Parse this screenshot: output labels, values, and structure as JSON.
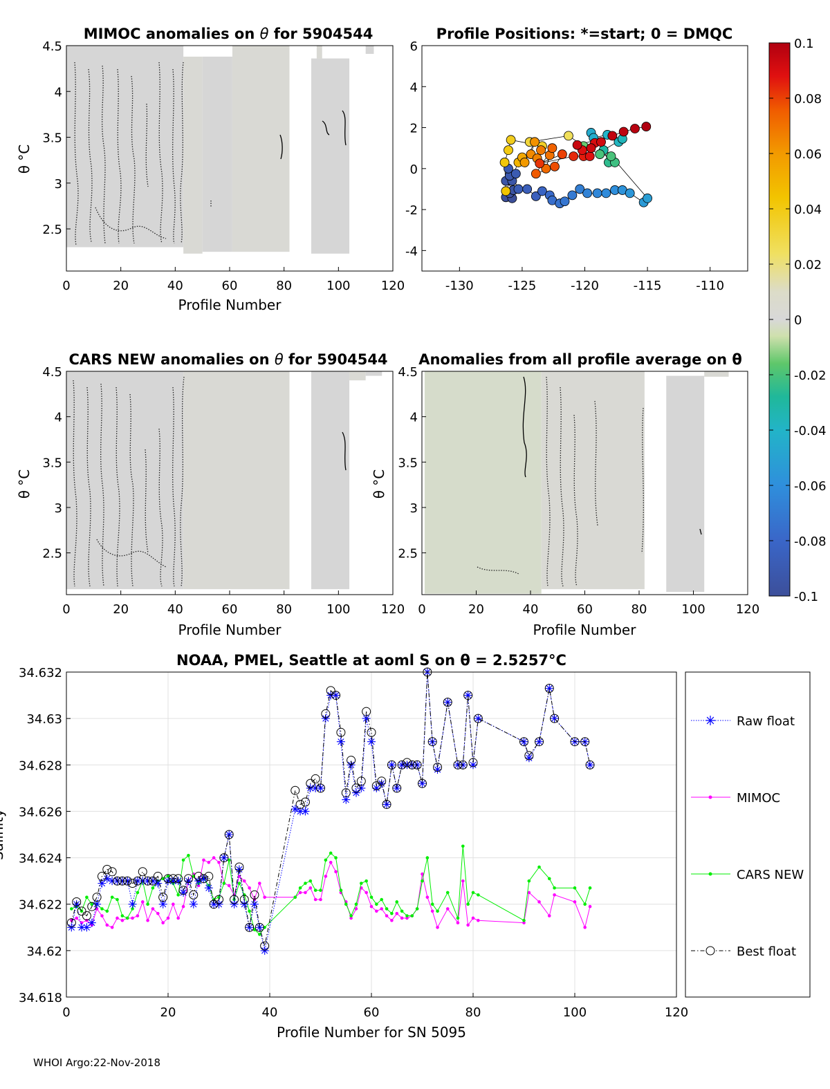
{
  "footer": "WHOI Argo:22-Nov-2018",
  "colorbar": {
    "ticks": [
      "0.1",
      "0.08",
      "0.06",
      "0.04",
      "0.02",
      "0",
      "-0.02",
      "-0.04",
      "-0.06",
      "-0.08",
      "-0.1"
    ],
    "range": [
      -0.1,
      0.1
    ]
  },
  "chart_data": [
    {
      "id": "mimoc",
      "type": "heatmap",
      "title_prefix": "MIMOC anomalies on ",
      "title_suffix": "  for 5904544",
      "xlabel": "Profile Number",
      "ylabel": "θ °C",
      "xlim": [
        0,
        120
      ],
      "ylim": [
        2.04,
        4.5
      ],
      "xticks": [
        "0",
        "20",
        "40",
        "60",
        "80",
        "100",
        "120"
      ],
      "yticks": [
        "2.5",
        "3",
        "3.5",
        "4",
        "4.5"
      ],
      "blocks": [
        [
          0,
          43,
          2.3,
          4.5
        ],
        [
          43,
          50,
          2.23,
          4.38
        ],
        [
          50,
          61,
          2.25,
          4.38
        ],
        [
          61,
          82,
          2.25,
          4.5
        ],
        [
          90,
          104,
          2.23,
          4.36
        ],
        [
          92,
          94,
          4.36,
          4.5
        ],
        [
          110,
          113,
          4.41,
          4.5
        ]
      ]
    },
    {
      "id": "positions",
      "type": "scatter",
      "title": "Profile Positions: *=start; 0 = DMQC",
      "xlim": [
        -133,
        -107
      ],
      "ylim": [
        -5,
        6
      ],
      "xticks": [
        "-130",
        "-125",
        "-120",
        "-115",
        "-110"
      ],
      "yticks": [
        "-4",
        "-2",
        "0",
        "2",
        "4",
        "6"
      ],
      "points": [
        [
          -126.3,
          -1.4,
          -0.1
        ],
        [
          -125.8,
          -1.45,
          -0.1
        ],
        [
          -126.0,
          -1.2,
          -0.098
        ],
        [
          -125.7,
          -1.05,
          -0.096
        ],
        [
          -126.3,
          -0.6,
          -0.095
        ],
        [
          -125.8,
          -0.6,
          -0.094
        ],
        [
          -126.0,
          -0.35,
          -0.092
        ],
        [
          -125.5,
          -0.25,
          -0.09
        ],
        [
          -126.1,
          0.0,
          -0.09
        ],
        [
          -125.3,
          -1.0,
          -0.088
        ],
        [
          -124.6,
          -1.0,
          -0.086
        ],
        [
          -123.9,
          -1.35,
          -0.085
        ],
        [
          -123.4,
          -1.1,
          -0.082
        ],
        [
          -122.8,
          -1.3,
          -0.078
        ],
        [
          -122.6,
          -1.55,
          -0.076
        ],
        [
          -122.0,
          -1.7,
          -0.074
        ],
        [
          -121.6,
          -1.6,
          -0.072
        ],
        [
          -121.0,
          -1.3,
          -0.07
        ],
        [
          -120.4,
          -1.0,
          -0.068
        ],
        [
          -119.8,
          -1.2,
          -0.066
        ],
        [
          -119.0,
          -1.2,
          -0.064
        ],
        [
          -118.3,
          -1.2,
          -0.062
        ],
        [
          -117.6,
          -1.05,
          -0.06
        ],
        [
          -117.0,
          -1.05,
          -0.058
        ],
        [
          -116.4,
          -1.2,
          -0.056
        ],
        [
          -115.3,
          -1.65,
          -0.054
        ],
        [
          -115.0,
          -1.45,
          -0.052
        ],
        [
          -119.5,
          1.75,
          -0.045
        ],
        [
          -119.3,
          1.5,
          -0.044
        ],
        [
          -118.2,
          1.65,
          -0.04
        ],
        [
          -117.3,
          1.3,
          -0.038
        ],
        [
          -117.0,
          1.45,
          -0.036
        ],
        [
          -118.5,
          0.9,
          -0.03
        ],
        [
          -118.1,
          0.3,
          -0.025
        ],
        [
          -117.6,
          0.3,
          -0.022
        ],
        [
          -117.9,
          0.6,
          -0.02
        ],
        [
          -118.8,
          0.7,
          -0.02
        ],
        [
          -120.1,
          1.1,
          -0.015
        ],
        [
          -121.3,
          1.6,
          0.025
        ],
        [
          -124.4,
          1.3,
          0.032
        ],
        [
          -123.4,
          1.1,
          0.036
        ],
        [
          -125.9,
          1.4,
          0.038
        ],
        [
          -126.1,
          0.9,
          0.04
        ],
        [
          -126.4,
          0.3,
          0.042
        ],
        [
          -126.3,
          -1.1,
          0.044
        ],
        [
          -125.3,
          0.3,
          0.05
        ],
        [
          -125.0,
          0.55,
          0.055
        ],
        [
          -124.8,
          0.3,
          0.06
        ],
        [
          -124.0,
          1.3,
          0.062
        ],
        [
          -124.3,
          0.7,
          0.064
        ],
        [
          -123.8,
          0.5,
          0.066
        ],
        [
          -123.5,
          0.9,
          0.068
        ],
        [
          -122.8,
          0.65,
          0.07
        ],
        [
          -123.1,
          0.0,
          0.072
        ],
        [
          -122.6,
          1.0,
          0.074
        ],
        [
          -123.9,
          -0.25,
          0.076
        ],
        [
          -122.4,
          0.1,
          0.078
        ],
        [
          -121.8,
          0.7,
          0.08
        ],
        [
          -123.6,
          0.25,
          0.082
        ],
        [
          -120.9,
          0.6,
          0.084
        ],
        [
          -120.1,
          0.6,
          0.086
        ],
        [
          -119.6,
          0.6,
          0.088
        ],
        [
          -120.2,
          0.9,
          0.089
        ],
        [
          -119.2,
          1.25,
          0.09
        ],
        [
          -118.7,
          1.3,
          0.092
        ],
        [
          -119.5,
          1.0,
          0.093
        ],
        [
          -120.6,
          1.15,
          0.094
        ],
        [
          -117.8,
          1.6,
          0.096
        ],
        [
          -116.9,
          1.8,
          0.097
        ],
        [
          -116.0,
          1.95,
          0.098
        ],
        [
          -115.1,
          2.05,
          0.1
        ]
      ]
    },
    {
      "id": "cars",
      "type": "heatmap",
      "title_prefix": "CARS NEW anomalies on ",
      "title_suffix": " for 5904544",
      "xlabel": "Profile Number",
      "ylabel": "θ °C",
      "xlim": [
        0,
        120
      ],
      "ylim": [
        2.04,
        4.5
      ],
      "xticks": [
        "0",
        "20",
        "40",
        "60",
        "80",
        "100",
        "120"
      ],
      "yticks": [
        "2.5",
        "3",
        "3.5",
        "4",
        "4.5"
      ],
      "blocks": [
        [
          0,
          43,
          2.1,
          4.5
        ],
        [
          43,
          82,
          2.1,
          4.5
        ],
        [
          90,
          104,
          2.1,
          4.5
        ],
        [
          104,
          110,
          4.4,
          4.5
        ],
        [
          110,
          116,
          4.45,
          4.5
        ]
      ]
    },
    {
      "id": "average",
      "type": "heatmap",
      "title": "Anomalies from all profile average on θ",
      "xlabel": "Profile Number",
      "ylabel": "θ °C",
      "xlim": [
        0,
        120
      ],
      "ylim": [
        2.04,
        4.5
      ],
      "xticks": [
        "0",
        "20",
        "40",
        "60",
        "80",
        "100",
        "120"
      ],
      "yticks": [
        "2.5",
        "3",
        "3.5",
        "4",
        "4.5"
      ],
      "blocks": [
        [
          1,
          44,
          2.05,
          4.5
        ],
        [
          44,
          82,
          2.1,
          4.5
        ],
        [
          90,
          104,
          2.07,
          4.45
        ],
        [
          104,
          113,
          4.44,
          4.5
        ]
      ]
    },
    {
      "id": "salinity",
      "type": "line",
      "title": "NOAA, PMEL, Seattle at aoml S on θ = 2.5257°C",
      "xlabel": "Profile Number for SN 5095",
      "ylabel": "Salinity",
      "xlim": [
        0,
        120
      ],
      "ylim": [
        34.618,
        34.632
      ],
      "xticks": [
        "0",
        "20",
        "40",
        "60",
        "80",
        "100",
        "120"
      ],
      "yticks": [
        "34.632",
        "34.63",
        "34.628",
        "34.626",
        "34.624",
        "34.622",
        "34.62",
        "34.618"
      ],
      "x": [
        1,
        2,
        3,
        4,
        5,
        6,
        7,
        8,
        9,
        10,
        11,
        12,
        13,
        14,
        15,
        16,
        17,
        18,
        19,
        20,
        21,
        22,
        23,
        24,
        25,
        26,
        27,
        28,
        29,
        30,
        31,
        32,
        33,
        34,
        35,
        36,
        37,
        38,
        39,
        45,
        46,
        47,
        48,
        49,
        50,
        51,
        52,
        53,
        54,
        55,
        56,
        57,
        58,
        59,
        60,
        61,
        62,
        63,
        64,
        65,
        66,
        67,
        68,
        69,
        70,
        71,
        72,
        73,
        75,
        77,
        78,
        79,
        80,
        81,
        90,
        91,
        93,
        95,
        96,
        100,
        102,
        103
      ],
      "series": [
        {
          "name": "Raw float",
          "color": "#0000ff",
          "values": [
            34.621,
            34.622,
            34.621,
            34.621,
            34.6212,
            34.622,
            34.6229,
            34.6231,
            34.623,
            34.623,
            34.623,
            34.623,
            34.622,
            34.623,
            34.623,
            34.623,
            34.623,
            34.6229,
            34.622,
            34.623,
            34.623,
            34.623,
            34.6225,
            34.623,
            34.622,
            34.623,
            34.6231,
            34.6227,
            34.622,
            34.622,
            34.624,
            34.625,
            34.622,
            34.6235,
            34.622,
            34.621,
            34.622,
            34.621,
            34.62,
            34.6261,
            34.626,
            34.626,
            34.627,
            34.627,
            34.627,
            34.63,
            34.631,
            34.631,
            34.629,
            34.6265,
            34.628,
            34.6268,
            34.627,
            34.63,
            34.629,
            34.627,
            34.6272,
            34.6263,
            34.628,
            34.627,
            34.628,
            34.628,
            34.628,
            34.628,
            34.6272,
            34.632,
            34.629,
            34.6278,
            34.6307,
            34.628,
            34.628,
            34.631,
            34.628,
            34.63,
            34.629,
            34.6283,
            34.629,
            34.6313,
            34.63,
            34.629,
            34.629,
            34.628
          ]
        },
        {
          "name": "MIMOC",
          "color": "#ff00ff",
          "values": [
            34.6213,
            34.6214,
            34.6212,
            34.6213,
            34.6211,
            34.6218,
            34.6215,
            34.6211,
            34.621,
            34.6214,
            34.6213,
            34.6214,
            34.6214,
            34.6215,
            34.6221,
            34.6213,
            34.6218,
            34.6216,
            34.6212,
            34.6214,
            34.622,
            34.6214,
            34.6219,
            34.623,
            34.6233,
            34.6228,
            34.6239,
            34.6238,
            34.624,
            34.6238,
            34.6229,
            34.6228,
            34.6224,
            34.6232,
            34.623,
            34.6227,
            34.6222,
            34.6229,
            34.6223,
            34.6223,
            34.6225,
            34.6225,
            34.6227,
            34.6222,
            34.6222,
            34.6232,
            34.6238,
            34.6234,
            34.6225,
            34.6221,
            34.6214,
            34.6218,
            34.6227,
            34.6225,
            34.6219,
            34.6217,
            34.6218,
            34.6215,
            34.6213,
            34.6216,
            34.6214,
            34.6214,
            34.6215,
            34.6218,
            34.6233,
            34.6223,
            34.6217,
            34.621,
            34.6218,
            34.6212,
            34.623,
            34.6211,
            34.6214,
            34.6213,
            34.6212,
            34.6225,
            34.6221,
            34.6215,
            34.6224,
            34.6221,
            34.621,
            34.6219
          ]
        },
        {
          "name": "CARS NEW",
          "color": "#00ee00",
          "values": [
            34.6218,
            34.6219,
            34.6217,
            34.6223,
            34.622,
            34.622,
            34.6218,
            34.6217,
            34.6223,
            34.6222,
            34.6215,
            34.6214,
            34.6218,
            34.6225,
            34.623,
            34.622,
            34.6227,
            34.623,
            34.6231,
            34.6232,
            34.6229,
            34.6224,
            34.6239,
            34.6241,
            34.6232,
            34.6229,
            34.6231,
            34.6228,
            34.6222,
            34.6223,
            34.6229,
            34.6239,
            34.6222,
            34.6229,
            34.6224,
            34.6217,
            34.6209,
            34.6207,
            34.621,
            34.6223,
            34.6227,
            34.6229,
            34.623,
            34.6226,
            34.6226,
            34.6239,
            34.6242,
            34.624,
            34.6226,
            34.622,
            34.6215,
            34.622,
            34.6229,
            34.623,
            34.6223,
            34.622,
            34.6222,
            34.6218,
            34.6216,
            34.6221,
            34.6217,
            34.6215,
            34.6215,
            34.6218,
            34.623,
            34.624,
            34.622,
            34.6217,
            34.6225,
            34.6214,
            34.6245,
            34.622,
            34.6225,
            34.6224,
            34.6213,
            34.623,
            34.6236,
            34.6231,
            34.6227,
            34.6227,
            34.622,
            34.6227
          ]
        },
        {
          "name": "Best float",
          "color": "#000000",
          "values": [
            34.6212,
            34.6221,
            34.6217,
            34.6215,
            34.6219,
            34.6223,
            34.6232,
            34.6235,
            34.6234,
            34.623,
            34.623,
            34.623,
            34.6229,
            34.623,
            34.6234,
            34.623,
            34.623,
            34.6232,
            34.6223,
            34.6231,
            34.6231,
            34.6231,
            34.6226,
            34.6231,
            34.6224,
            34.6232,
            34.6231,
            34.6232,
            34.622,
            34.6222,
            34.624,
            34.625,
            34.6222,
            34.6236,
            34.6222,
            34.621,
            34.6224,
            34.621,
            34.6202,
            34.6269,
            34.6263,
            34.6264,
            34.6272,
            34.6274,
            34.627,
            34.6302,
            34.6312,
            34.631,
            34.6294,
            34.6268,
            34.6282,
            34.627,
            34.6273,
            34.6303,
            34.6294,
            34.6271,
            34.6273,
            34.6263,
            34.628,
            34.627,
            34.628,
            34.6281,
            34.628,
            34.628,
            34.6272,
            34.632,
            34.629,
            34.6279,
            34.6307,
            34.628,
            34.628,
            34.631,
            34.6281,
            34.63,
            34.629,
            34.6284,
            34.629,
            34.6313,
            34.63,
            34.629,
            34.629,
            34.628
          ]
        }
      ]
    }
  ]
}
